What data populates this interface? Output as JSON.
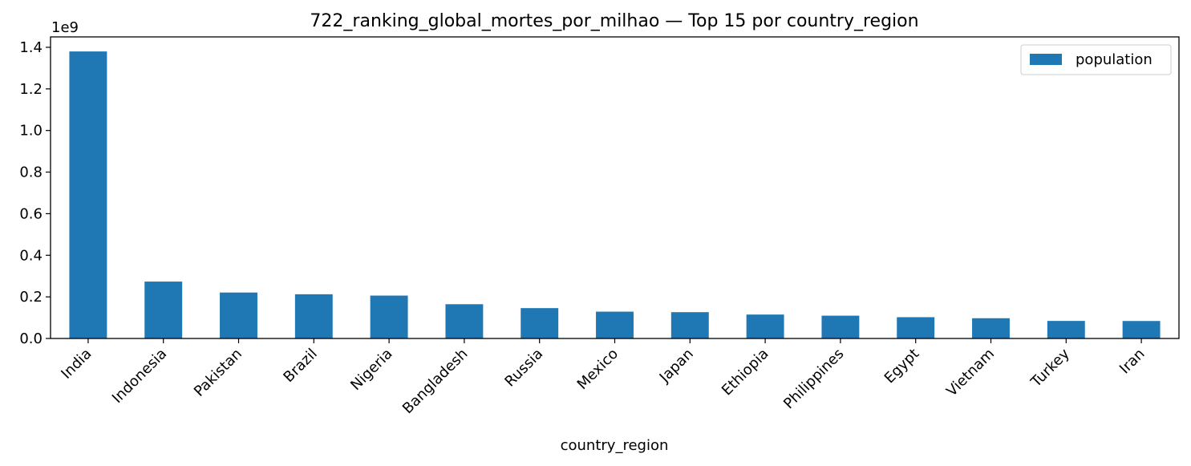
{
  "chart_data": {
    "type": "bar",
    "title": "722_ranking_global_mortes_por_milhao — Top 15 por country_region",
    "xlabel": "country_region",
    "ylabel": "",
    "y_offset_label": "1e9",
    "categories": [
      "India",
      "Indonesia",
      "Pakistan",
      "Brazil",
      "Nigeria",
      "Bangladesh",
      "Russia",
      "Mexico",
      "Japan",
      "Ethiopia",
      "Philippines",
      "Egypt",
      "Vietnam",
      "Turkey",
      "Iran"
    ],
    "series": [
      {
        "name": "population",
        "values": [
          1380004385,
          273523615,
          220892340,
          212559417,
          206139589,
          164689383,
          145934462,
          128932753,
          126476461,
          114963588,
          109581078,
          102334404,
          97338579,
          84339067,
          83992949
        ]
      }
    ],
    "ylim": [
      0,
      1.45
    ],
    "yticks": [
      "0.0",
      "0.2",
      "0.4",
      "0.6",
      "0.8",
      "1.0",
      "1.2",
      "1.4"
    ],
    "legend": "top-right",
    "grid": false,
    "colors": {
      "bar": "#1f77b4",
      "axis": "#000000"
    }
  }
}
